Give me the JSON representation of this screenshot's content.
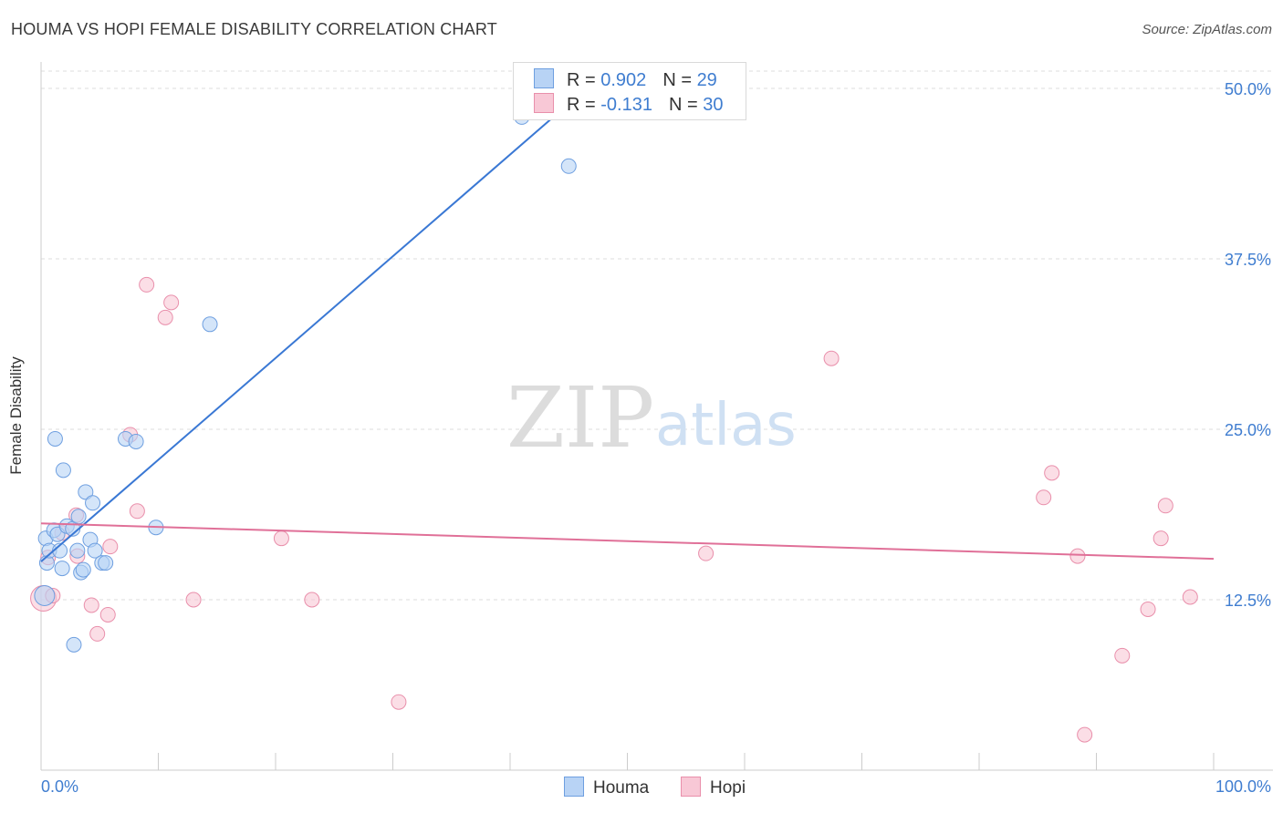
{
  "title": "HOUMA VS HOPI FEMALE DISABILITY CORRELATION CHART",
  "source": "Source: ZipAtlas.com",
  "watermark": {
    "zip": "ZIP",
    "atlas": "atlas"
  },
  "legend": {
    "r_label": "R =",
    "n_label": "N =",
    "houma": {
      "r": "0.902",
      "n": "29"
    },
    "hopi": {
      "r": "-0.131",
      "n": "30"
    }
  },
  "colors": {
    "houma_fill": "#b8d3f5",
    "houma_stroke": "#6e9fe0",
    "houma_line": "#3a78d4",
    "hopi_fill": "#f8c8d6",
    "hopi_stroke": "#e98fab",
    "hopi_line": "#e07098",
    "tick_label": "#3f7dd0",
    "grid": "#dddddd"
  },
  "chart_data": {
    "type": "scatter",
    "title": "HOUMA VS HOPI FEMALE DISABILITY CORRELATION CHART",
    "xlabel": "",
    "ylabel": "Female Disability",
    "xlim": [
      0,
      100
    ],
    "ylim": [
      0,
      50
    ],
    "x_tick_labels": [
      "0.0%",
      "100.0%"
    ],
    "y_ticks": [
      12.5,
      25.0,
      37.5,
      50.0
    ],
    "y_tick_labels": [
      "12.5%",
      "25.0%",
      "37.5%",
      "50.0%"
    ],
    "grid": "horizontal dashed",
    "legend_position": "top-center",
    "series": [
      {
        "name": "Houma",
        "r": 0.902,
        "n": 29,
        "points": [
          [
            0.3,
            12.8
          ],
          [
            0.4,
            17.0
          ],
          [
            0.5,
            15.2
          ],
          [
            0.7,
            16.1
          ],
          [
            1.1,
            17.6
          ],
          [
            1.2,
            24.3
          ],
          [
            1.4,
            17.3
          ],
          [
            1.6,
            16.1
          ],
          [
            1.8,
            14.8
          ],
          [
            1.9,
            22.0
          ],
          [
            2.2,
            17.9
          ],
          [
            2.7,
            17.7
          ],
          [
            2.8,
            9.2
          ],
          [
            3.1,
            16.1
          ],
          [
            3.2,
            18.6
          ],
          [
            3.4,
            14.5
          ],
          [
            3.6,
            14.7
          ],
          [
            3.8,
            20.4
          ],
          [
            4.2,
            16.9
          ],
          [
            4.4,
            19.6
          ],
          [
            4.6,
            16.1
          ],
          [
            5.2,
            15.2
          ],
          [
            5.5,
            15.2
          ],
          [
            7.2,
            24.3
          ],
          [
            8.1,
            24.1
          ],
          [
            9.8,
            17.8
          ],
          [
            14.4,
            32.7
          ],
          [
            41.0,
            47.9
          ],
          [
            45.0,
            44.3
          ]
        ],
        "trend": [
          [
            0.0,
            15.3
          ],
          [
            46.5,
            50.0
          ]
        ]
      },
      {
        "name": "Hopi",
        "r": -0.131,
        "n": 30,
        "points": [
          [
            0.2,
            12.6
          ],
          [
            0.6,
            15.6
          ],
          [
            1.0,
            12.8
          ],
          [
            1.8,
            17.4
          ],
          [
            3.0,
            18.7
          ],
          [
            3.1,
            15.7
          ],
          [
            4.3,
            12.1
          ],
          [
            4.8,
            10.0
          ],
          [
            5.7,
            11.4
          ],
          [
            5.9,
            16.4
          ],
          [
            7.6,
            24.6
          ],
          [
            8.2,
            19.0
          ],
          [
            9.0,
            35.6
          ],
          [
            10.6,
            33.2
          ],
          [
            11.1,
            34.3
          ],
          [
            13.0,
            12.5
          ],
          [
            20.5,
            17.0
          ],
          [
            23.1,
            12.5
          ],
          [
            30.5,
            5.0
          ],
          [
            56.7,
            15.9
          ],
          [
            67.4,
            30.2
          ],
          [
            85.5,
            20.0
          ],
          [
            86.2,
            21.8
          ],
          [
            88.4,
            15.7
          ],
          [
            89.0,
            2.6
          ],
          [
            92.2,
            8.4
          ],
          [
            94.4,
            11.8
          ],
          [
            95.5,
            17.0
          ],
          [
            95.9,
            19.4
          ],
          [
            98.0,
            12.7
          ]
        ],
        "trend": [
          [
            0.0,
            18.1
          ],
          [
            100.0,
            15.5
          ]
        ]
      }
    ]
  },
  "bottom_legend": {
    "houma": "Houma",
    "hopi": "Hopi"
  }
}
